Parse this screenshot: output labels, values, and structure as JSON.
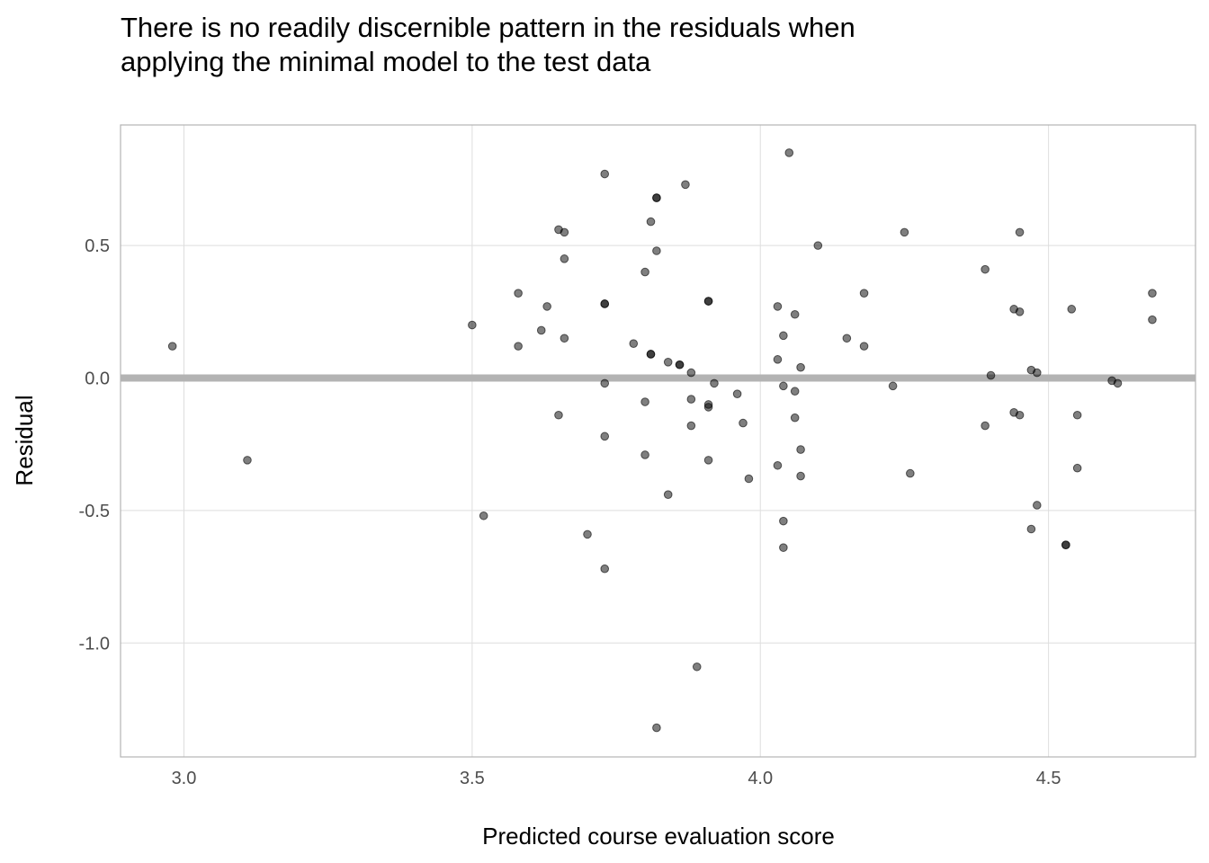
{
  "chart_data": {
    "type": "scatter",
    "title": "There is no readily discernible pattern in the residuals when applying the minimal model to the test data",
    "title_lines": [
      "There is no readily discernible pattern in the residuals when",
      "applying the minimal model to the test data"
    ],
    "xlabel": "Predicted course evaluation score",
    "ylabel": "Residual",
    "xlim": [
      2.89,
      4.755
    ],
    "ylim": [
      -1.43,
      0.955
    ],
    "x_ticks": [
      3.0,
      3.5,
      4.0,
      4.5
    ],
    "x_tick_labels": [
      "3.0",
      "3.5",
      "4.0",
      "4.5"
    ],
    "y_ticks": [
      -1.0,
      -0.5,
      0.0,
      0.5
    ],
    "y_tick_labels": [
      "-1.0",
      "-0.5",
      "0.0",
      "0.5"
    ],
    "grid": true,
    "reference_line": {
      "y": 0.0,
      "color": "#b3b3b3"
    },
    "point_color": "#000000",
    "point_alpha": 0.5,
    "points": [
      {
        "x": 2.98,
        "y": 0.12
      },
      {
        "x": 3.11,
        "y": -0.31
      },
      {
        "x": 3.5,
        "y": 0.2
      },
      {
        "x": 3.52,
        "y": -0.52
      },
      {
        "x": 3.58,
        "y": 0.32
      },
      {
        "x": 3.58,
        "y": 0.12
      },
      {
        "x": 3.62,
        "y": 0.18
      },
      {
        "x": 3.63,
        "y": 0.27
      },
      {
        "x": 3.65,
        "y": 0.56
      },
      {
        "x": 3.66,
        "y": 0.55
      },
      {
        "x": 3.66,
        "y": 0.45
      },
      {
        "x": 3.66,
        "y": 0.15
      },
      {
        "x": 3.65,
        "y": -0.14
      },
      {
        "x": 3.7,
        "y": -0.59
      },
      {
        "x": 3.73,
        "y": 0.77
      },
      {
        "x": 3.73,
        "y": 0.28
      },
      {
        "x": 3.73,
        "y": 0.28
      },
      {
        "x": 3.73,
        "y": -0.02
      },
      {
        "x": 3.73,
        "y": -0.22
      },
      {
        "x": 3.73,
        "y": -0.72
      },
      {
        "x": 3.78,
        "y": 0.13
      },
      {
        "x": 3.8,
        "y": 0.4
      },
      {
        "x": 3.8,
        "y": -0.09
      },
      {
        "x": 3.8,
        "y": -0.29
      },
      {
        "x": 3.81,
        "y": 0.59
      },
      {
        "x": 3.81,
        "y": 0.09
      },
      {
        "x": 3.81,
        "y": 0.09
      },
      {
        "x": 3.82,
        "y": 0.68
      },
      {
        "x": 3.82,
        "y": 0.68
      },
      {
        "x": 3.82,
        "y": 0.48
      },
      {
        "x": 3.82,
        "y": -1.32
      },
      {
        "x": 3.84,
        "y": 0.06
      },
      {
        "x": 3.84,
        "y": -0.44
      },
      {
        "x": 3.86,
        "y": 0.05
      },
      {
        "x": 3.86,
        "y": 0.05
      },
      {
        "x": 3.87,
        "y": 0.73
      },
      {
        "x": 3.88,
        "y": 0.02
      },
      {
        "x": 3.88,
        "y": -0.08
      },
      {
        "x": 3.88,
        "y": -0.18
      },
      {
        "x": 3.89,
        "y": -1.09
      },
      {
        "x": 3.91,
        "y": 0.29
      },
      {
        "x": 3.91,
        "y": 0.29
      },
      {
        "x": 3.91,
        "y": -0.1
      },
      {
        "x": 3.91,
        "y": -0.11
      },
      {
        "x": 3.91,
        "y": -0.31
      },
      {
        "x": 3.92,
        "y": -0.02
      },
      {
        "x": 3.96,
        "y": -0.06
      },
      {
        "x": 3.97,
        "y": -0.17
      },
      {
        "x": 3.98,
        "y": -0.38
      },
      {
        "x": 4.03,
        "y": 0.27
      },
      {
        "x": 4.04,
        "y": 0.16
      },
      {
        "x": 4.03,
        "y": 0.07
      },
      {
        "x": 4.04,
        "y": -0.03
      },
      {
        "x": 4.03,
        "y": -0.33
      },
      {
        "x": 4.04,
        "y": -0.54
      },
      {
        "x": 4.04,
        "y": -0.64
      },
      {
        "x": 4.05,
        "y": 0.85
      },
      {
        "x": 4.06,
        "y": 0.24
      },
      {
        "x": 4.06,
        "y": -0.05
      },
      {
        "x": 4.06,
        "y": -0.15
      },
      {
        "x": 4.07,
        "y": 0.04
      },
      {
        "x": 4.07,
        "y": -0.27
      },
      {
        "x": 4.07,
        "y": -0.37
      },
      {
        "x": 4.1,
        "y": 0.5
      },
      {
        "x": 4.15,
        "y": 0.15
      },
      {
        "x": 4.18,
        "y": 0.32
      },
      {
        "x": 4.18,
        "y": 0.12
      },
      {
        "x": 4.23,
        "y": -0.03
      },
      {
        "x": 4.25,
        "y": 0.55
      },
      {
        "x": 4.26,
        "y": -0.36
      },
      {
        "x": 4.39,
        "y": -0.18
      },
      {
        "x": 4.39,
        "y": 0.41
      },
      {
        "x": 4.4,
        "y": 0.01
      },
      {
        "x": 4.44,
        "y": 0.26
      },
      {
        "x": 4.45,
        "y": 0.25
      },
      {
        "x": 4.44,
        "y": -0.13
      },
      {
        "x": 4.45,
        "y": -0.14
      },
      {
        "x": 4.45,
        "y": 0.55
      },
      {
        "x": 4.47,
        "y": 0.03
      },
      {
        "x": 4.48,
        "y": 0.02
      },
      {
        "x": 4.47,
        "y": -0.57
      },
      {
        "x": 4.48,
        "y": -0.48
      },
      {
        "x": 4.53,
        "y": -0.63
      },
      {
        "x": 4.53,
        "y": -0.63
      },
      {
        "x": 4.54,
        "y": 0.26
      },
      {
        "x": 4.55,
        "y": -0.14
      },
      {
        "x": 4.55,
        "y": -0.34
      },
      {
        "x": 4.61,
        "y": -0.01
      },
      {
        "x": 4.62,
        "y": -0.02
      },
      {
        "x": 4.68,
        "y": 0.32
      },
      {
        "x": 4.68,
        "y": 0.22
      }
    ]
  }
}
